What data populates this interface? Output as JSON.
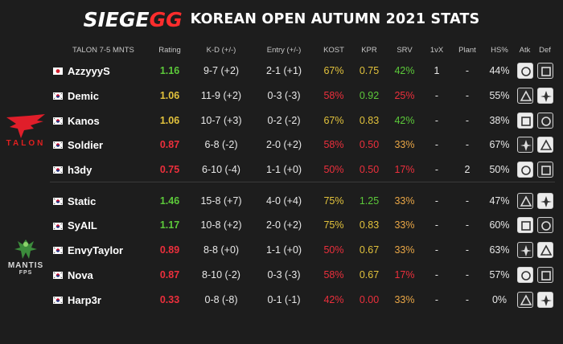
{
  "header": {
    "logo_prefix": "SIEGE",
    "logo_suffix": "GG",
    "title": "KOREAN OPEN AUTUMN 2021 STATS"
  },
  "columns": {
    "team": "TALON 7-5 MNTS",
    "rating": "Rating",
    "kd": "K-D (+/-)",
    "entry": "Entry (+/-)",
    "kost": "KOST",
    "kpr": "KPR",
    "srv": "SRV",
    "onevx": "1vX",
    "plant": "Plant",
    "hs": "HS%",
    "atk": "Atk",
    "def": "Def"
  },
  "teams": {
    "talon_logo_text": "TALON",
    "mantis_logo_text": "MANTIS",
    "mantis_logo_sub": "FPS"
  },
  "colors": {
    "green": "#5cc93a",
    "yellow": "#e2c23c",
    "red": "#ec2f3c",
    "pink": "#f06b6b",
    "orange": "#e9a646",
    "text": "#e8e8e8"
  },
  "players": [
    {
      "flag": "jp",
      "name": "AzzyyyS",
      "rating": "1.16",
      "kd": "9-7 (+2)",
      "entry": "2-1 (+1)",
      "kost": "67%",
      "kpr": "0.75",
      "srv": "42%",
      "onevx": "1",
      "plant": "-",
      "hs": "44%",
      "atk_icon": "operator-icon",
      "def_icon": "operator-icon"
    },
    {
      "flag": "kr",
      "name": "Demic",
      "rating": "1.06",
      "kd": "11-9 (+2)",
      "entry": "0-3 (-3)",
      "kost": "58%",
      "kpr": "0.92",
      "srv": "25%",
      "onevx": "-",
      "plant": "-",
      "hs": "55%",
      "atk_icon": "operator-icon",
      "def_icon": "operator-icon"
    },
    {
      "flag": "kr",
      "name": "Kanos",
      "rating": "1.06",
      "kd": "10-7 (+3)",
      "entry": "0-2 (-2)",
      "kost": "67%",
      "kpr": "0.83",
      "srv": "42%",
      "onevx": "-",
      "plant": "-",
      "hs": "38%",
      "atk_icon": "operator-icon",
      "def_icon": "operator-icon"
    },
    {
      "flag": "kr",
      "name": "Soldier",
      "rating": "0.87",
      "kd": "6-8 (-2)",
      "entry": "2-0 (+2)",
      "kost": "58%",
      "kpr": "0.50",
      "srv": "33%",
      "onevx": "-",
      "plant": "-",
      "hs": "67%",
      "atk_icon": "operator-icon",
      "def_icon": "operator-icon"
    },
    {
      "flag": "kr",
      "name": "h3dy",
      "rating": "0.75",
      "kd": "6-10 (-4)",
      "entry": "1-1 (+0)",
      "kost": "50%",
      "kpr": "0.50",
      "srv": "17%",
      "onevx": "-",
      "plant": "2",
      "hs": "50%",
      "atk_icon": "operator-icon",
      "def_icon": "operator-icon"
    },
    {
      "flag": "kr",
      "name": "Static",
      "rating": "1.46",
      "kd": "15-8 (+7)",
      "entry": "4-0 (+4)",
      "kost": "75%",
      "kpr": "1.25",
      "srv": "33%",
      "onevx": "-",
      "plant": "-",
      "hs": "47%",
      "atk_icon": "operator-icon",
      "def_icon": "operator-icon"
    },
    {
      "flag": "kr",
      "name": "SyAIL",
      "rating": "1.17",
      "kd": "10-8 (+2)",
      "entry": "2-0 (+2)",
      "kost": "75%",
      "kpr": "0.83",
      "srv": "33%",
      "onevx": "-",
      "plant": "-",
      "hs": "60%",
      "atk_icon": "operator-icon",
      "def_icon": "operator-icon"
    },
    {
      "flag": "kr",
      "name": "EnvyTaylor",
      "rating": "0.89",
      "kd": "8-8 (+0)",
      "entry": "1-1 (+0)",
      "kost": "50%",
      "kpr": "0.67",
      "srv": "33%",
      "onevx": "-",
      "plant": "-",
      "hs": "63%",
      "atk_icon": "operator-icon",
      "def_icon": "operator-icon"
    },
    {
      "flag": "kr",
      "name": "Nova",
      "rating": "0.87",
      "kd": "8-10 (-2)",
      "entry": "0-3 (-3)",
      "kost": "58%",
      "kpr": "0.67",
      "srv": "17%",
      "onevx": "-",
      "plant": "-",
      "hs": "57%",
      "atk_icon": "operator-icon",
      "def_icon": "operator-icon"
    },
    {
      "flag": "kr",
      "name": "Harp3r",
      "rating": "0.33",
      "kd": "0-8 (-8)",
      "entry": "0-1 (-1)",
      "kost": "42%",
      "kpr": "0.00",
      "srv": "33%",
      "onevx": "-",
      "plant": "-",
      "hs": "0%",
      "atk_icon": "operator-icon",
      "def_icon": "operator-icon"
    }
  ]
}
